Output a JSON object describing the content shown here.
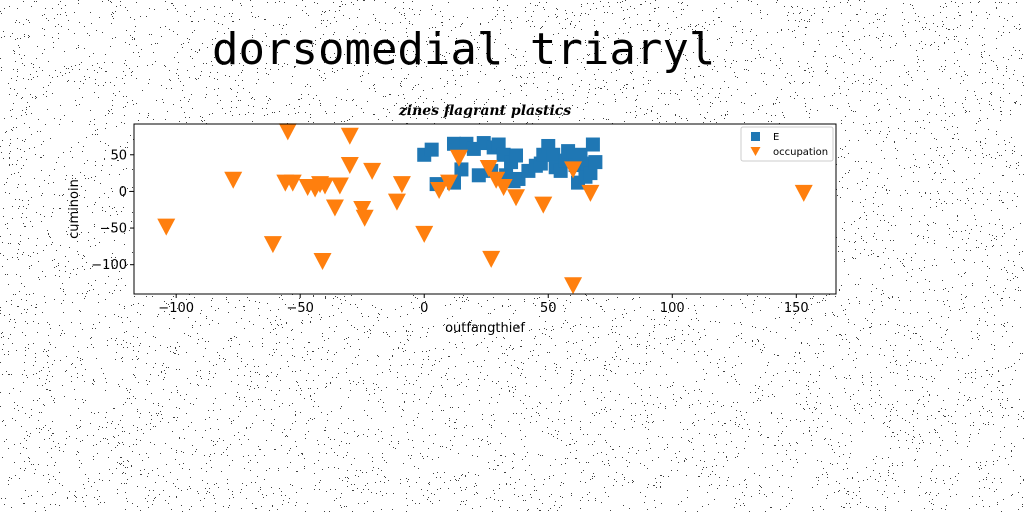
{
  "page": {
    "title": "dorsomedial triaryl"
  },
  "colors": {
    "series_square": "#1f77b4",
    "series_triangle": "#ff7f0e"
  },
  "chart_data": {
    "type": "scatter",
    "title": "zines flagrant plastics",
    "xlabel": "outfangthief",
    "ylabel": "cuminoin",
    "xlim": [
      -117,
      166
    ],
    "ylim": [
      -140,
      92
    ],
    "xticks": [
      -100,
      -50,
      0,
      50,
      100,
      150
    ],
    "yticks": [
      -100,
      -50,
      0,
      50
    ],
    "grid": false,
    "legend": {
      "placement": "top-right"
    },
    "series": [
      {
        "name": "E",
        "marker": "square",
        "color": "#1f77b4",
        "points": [
          [
            0,
            50
          ],
          [
            3,
            57
          ],
          [
            5,
            10
          ],
          [
            12,
            12
          ],
          [
            12,
            65
          ],
          [
            15,
            30
          ],
          [
            17,
            65
          ],
          [
            20,
            58
          ],
          [
            22,
            22
          ],
          [
            24,
            66
          ],
          [
            27,
            28
          ],
          [
            28,
            60
          ],
          [
            30,
            64
          ],
          [
            32,
            50
          ],
          [
            33,
            22
          ],
          [
            35,
            40
          ],
          [
            36,
            14
          ],
          [
            37,
            49
          ],
          [
            38,
            17
          ],
          [
            42,
            28
          ],
          [
            45,
            35
          ],
          [
            47,
            38
          ],
          [
            48,
            50
          ],
          [
            50,
            62
          ],
          [
            52,
            50
          ],
          [
            53,
            33
          ],
          [
            55,
            28
          ],
          [
            57,
            42
          ],
          [
            58,
            55
          ],
          [
            60,
            48
          ],
          [
            61,
            36
          ],
          [
            62,
            12
          ],
          [
            63,
            50
          ],
          [
            65,
            20
          ],
          [
            66,
            38
          ],
          [
            67,
            25
          ],
          [
            68,
            64
          ],
          [
            69,
            40
          ]
        ]
      },
      {
        "name": "occupation",
        "marker": "triangle-down",
        "color": "#ff7f0e",
        "points": [
          [
            -104,
            -48
          ],
          [
            -77,
            16
          ],
          [
            -61,
            -72
          ],
          [
            -55,
            82
          ],
          [
            -56,
            12
          ],
          [
            -53,
            12
          ],
          [
            -47,
            6
          ],
          [
            -44,
            4
          ],
          [
            -42,
            10
          ],
          [
            -41,
            -95
          ],
          [
            -40,
            8
          ],
          [
            -36,
            -22
          ],
          [
            -34,
            8
          ],
          [
            -30,
            76
          ],
          [
            -30,
            36
          ],
          [
            -25,
            -24
          ],
          [
            -24,
            -36
          ],
          [
            -21,
            28
          ],
          [
            -11,
            -14
          ],
          [
            -9,
            10
          ],
          [
            0,
            -58
          ],
          [
            6,
            2
          ],
          [
            10,
            12
          ],
          [
            14,
            46
          ],
          [
            26,
            32
          ],
          [
            27,
            -92
          ],
          [
            29,
            16
          ],
          [
            32,
            6
          ],
          [
            37,
            -8
          ],
          [
            48,
            -18
          ],
          [
            60,
            30
          ],
          [
            60,
            -128
          ],
          [
            67,
            -2
          ],
          [
            153,
            -2
          ]
        ]
      }
    ]
  }
}
